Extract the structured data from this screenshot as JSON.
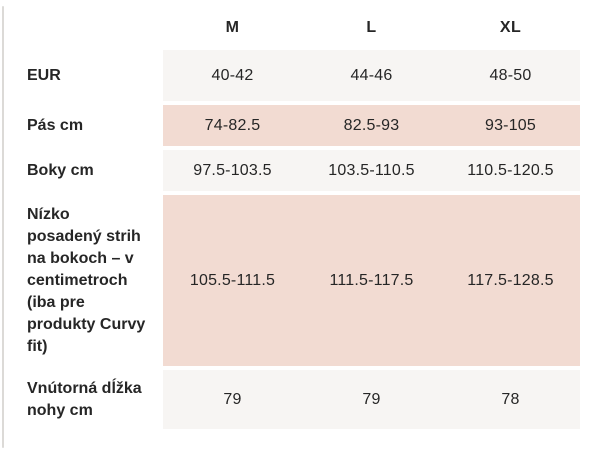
{
  "colors": {
    "row_light": "#f7f5f3",
    "row_pink": "#f2dbd2",
    "text": "#262626",
    "scrollbar": "#dcdad7"
  },
  "size_table": {
    "columns": [
      "M",
      "L",
      "XL"
    ],
    "rows": [
      {
        "label": "EUR",
        "values": [
          "40-42",
          "44-46",
          "48-50"
        ],
        "shade": "light"
      },
      {
        "label": "Pás cm",
        "values": [
          "74-82.5",
          "82.5-93",
          "93-105"
        ],
        "shade": "pink"
      },
      {
        "label": "Boky cm",
        "values": [
          "97.5-103.5",
          "103.5-110.5",
          "110.5-120.5"
        ],
        "shade": "light"
      },
      {
        "label": "Nízko posadený strih na bokoch – v centimetroch (iba pre produkty Curvy fit)",
        "values": [
          "105.5-111.5",
          "111.5-117.5",
          "117.5-128.5"
        ],
        "shade": "pink"
      },
      {
        "label": "Vnútorná dĺžka nohy cm",
        "values": [
          "79",
          "79",
          "78"
        ],
        "shade": "light"
      }
    ]
  }
}
